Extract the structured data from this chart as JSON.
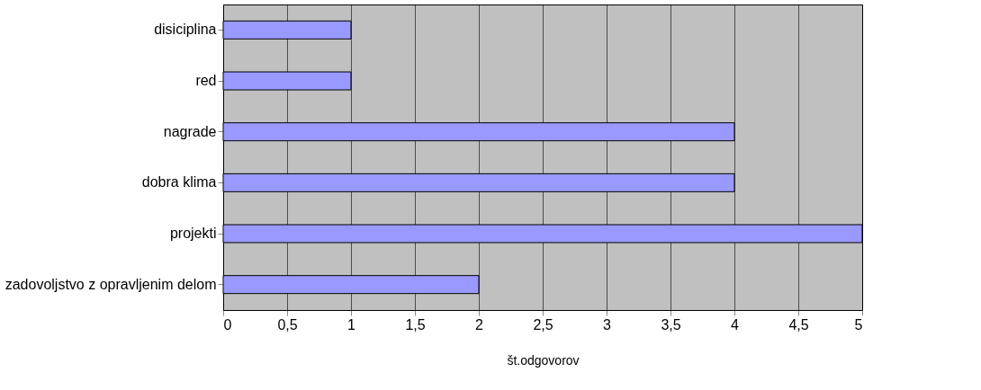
{
  "chart_data": {
    "type": "bar",
    "orientation": "horizontal",
    "xlabel": "št.odgovorov",
    "categories": [
      "disiciplina",
      "red",
      "nagrade",
      "dobra klima",
      "projekti",
      "zadovoljstvo z opravljenim delom"
    ],
    "values": [
      1,
      1,
      4,
      4,
      5,
      2
    ],
    "color": "#9999ff",
    "xlim": [
      0,
      5
    ],
    "xticks": [
      0,
      {
        "value": 0.5,
        "label": "0,5"
      },
      1,
      {
        "value": 1.5,
        "label": "1,5"
      },
      2,
      {
        "value": 2.5,
        "label": "2,5"
      },
      3,
      {
        "value": 3.5,
        "label": "3,5"
      },
      4,
      {
        "value": 4.5,
        "label": "4,5"
      },
      5
    ],
    "grid": "x"
  }
}
